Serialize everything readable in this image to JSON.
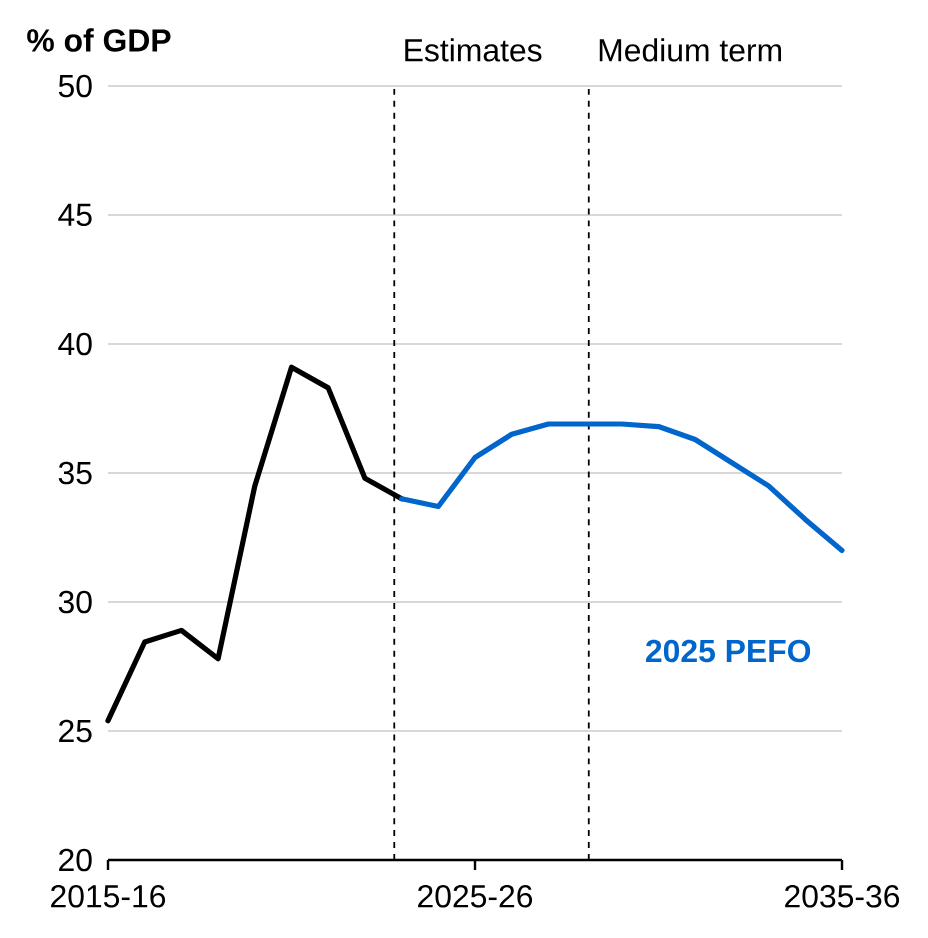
{
  "chart_data": {
    "type": "line",
    "ylabel": "% of GDP",
    "categories": [
      "2015-16",
      null,
      null,
      null,
      null,
      null,
      null,
      null,
      null,
      null,
      "2025-26",
      null,
      null,
      null,
      null,
      null,
      null,
      null,
      null,
      null,
      "2035-36"
    ],
    "series": [
      {
        "color": "#000000",
        "values": [
          25.4,
          28.45,
          28.9,
          27.8,
          34.5,
          39.1,
          38.3,
          34.8,
          34.0,
          null,
          null,
          null,
          null,
          null,
          null,
          null,
          null,
          null,
          null,
          null,
          null
        ]
      },
      {
        "name": "2025 PEFO",
        "color": "#0066cc",
        "values": [
          null,
          null,
          null,
          null,
          null,
          null,
          null,
          null,
          34.0,
          33.7,
          35.6,
          36.5,
          36.9,
          36.9,
          36.9,
          36.8,
          36.3,
          35.4,
          34.5,
          33.2,
          32.0
        ]
      }
    ],
    "ylim": [
      20,
      50
    ],
    "yticks": [
      20,
      25,
      30,
      35,
      40,
      45,
      50
    ],
    "grid": "y",
    "line_style": "solid",
    "marker": "none",
    "annotations": [
      "Estimates",
      "Medium term"
    ]
  }
}
